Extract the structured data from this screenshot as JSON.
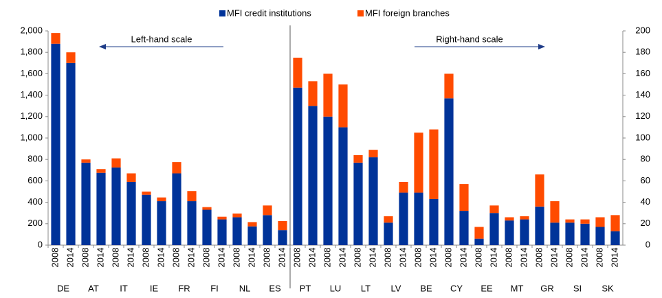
{
  "chart_data": {
    "type": "bar",
    "stacked": true,
    "legend": "top",
    "series": [
      {
        "name": "MFI credit institutions",
        "color": "#003399"
      },
      {
        "name": "MFI foreign branches",
        "color": "#ff4b00"
      }
    ],
    "ylim": [
      0,
      2000
    ],
    "yticks": [
      0,
      200,
      400,
      600,
      800,
      {
        "value": 1000,
        "label": "1,000"
      },
      {
        "value": 1200,
        "label": "1,200"
      },
      {
        "value": 1400,
        "label": "1,400"
      },
      {
        "value": 1600,
        "label": "1,600"
      },
      {
        "value": 1800,
        "label": "1,800"
      },
      {
        "value": 2000,
        "label": "2,000"
      }
    ],
    "y2lim": [
      0,
      200
    ],
    "y2ticks": [
      0,
      20,
      40,
      60,
      80,
      100,
      120,
      140,
      160,
      180,
      200
    ],
    "panels": [
      {
        "axis": "y",
        "annotation": "Left-hand scale",
        "groups": [
          "DE",
          "AT",
          "IT",
          "IE",
          "FR",
          "FI",
          "NL",
          "ES"
        ],
        "categories": [
          "2008",
          "2014",
          "2008",
          "2014",
          "2008",
          "2014",
          "2008",
          "2014",
          "2008",
          "2014",
          "2008",
          "2014",
          "2008",
          "2014",
          "2008",
          "2014"
        ],
        "values": [
          [
            1880,
            1700,
            770,
            675,
            725,
            590,
            470,
            410,
            670,
            410,
            330,
            240,
            260,
            175,
            280,
            140
          ],
          [
            100,
            100,
            30,
            35,
            85,
            80,
            30,
            35,
            105,
            95,
            25,
            25,
            35,
            40,
            90,
            85
          ]
        ]
      },
      {
        "axis": "y2",
        "annotation": "Right-hand scale",
        "groups": [
          "PT",
          "LU",
          "LT",
          "LV",
          "BE",
          "CY",
          "EE",
          "MT",
          "GR",
          "SI",
          "SK"
        ],
        "categories": [
          "2008",
          "2014",
          "2008",
          "2014",
          "2008",
          "2014",
          "2008",
          "2014",
          "2008",
          "2014",
          "2008",
          "2014",
          "2008",
          "2014",
          "2008",
          "2014",
          "2008",
          "2014",
          "2008",
          "2014",
          "2008",
          "2014"
        ],
        "values": [
          [
            147,
            130,
            120,
            110,
            77,
            82,
            21,
            49,
            49,
            43,
            137,
            32,
            6,
            30,
            23,
            24,
            36,
            21,
            21,
            20,
            17,
            13
          ],
          [
            28,
            23,
            40,
            40,
            7,
            7,
            6,
            10,
            56,
            65,
            23,
            25,
            11,
            7,
            3,
            3,
            30,
            20,
            3,
            4,
            9,
            15
          ]
        ]
      }
    ]
  }
}
